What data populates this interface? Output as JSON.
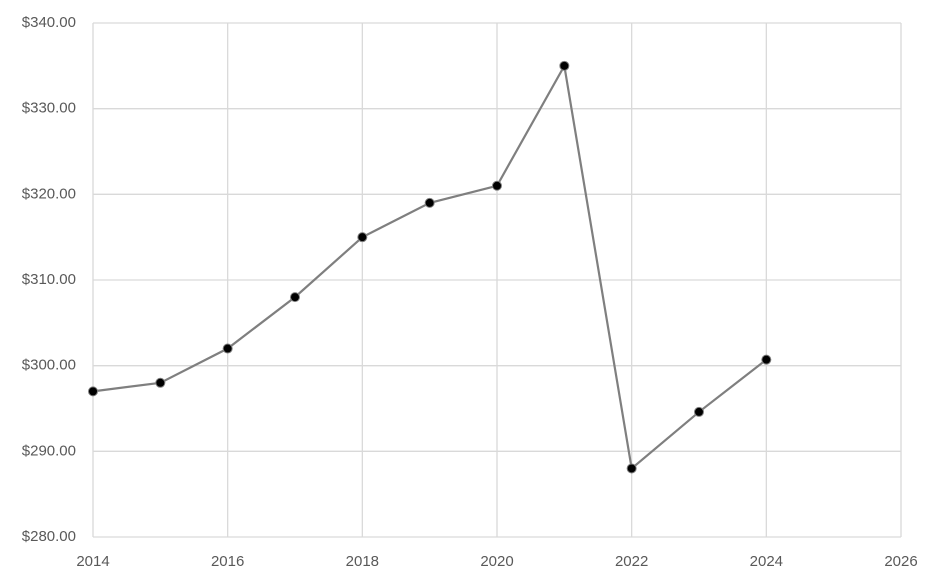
{
  "chart_data": {
    "type": "line",
    "x": [
      2014,
      2015,
      2016,
      2017,
      2018,
      2019,
      2020,
      2021,
      2022,
      2023,
      2024
    ],
    "values": [
      297,
      298,
      302,
      308,
      315,
      319,
      321,
      335,
      288,
      294.6,
      300.7
    ],
    "color": "#7f7f7f",
    "marker_color": "#000000",
    "xlim": [
      2014,
      2026
    ],
    "xticks": [
      2014,
      2016,
      2018,
      2020,
      2022,
      2024,
      2026
    ],
    "ylim": [
      280,
      340
    ],
    "yticks": [
      {
        "value": 280,
        "label": "$280.00"
      },
      {
        "value": 290,
        "label": "$290.00"
      },
      {
        "value": 300,
        "label": "$300.00"
      },
      {
        "value": 310,
        "label": "$310.00"
      },
      {
        "value": 320,
        "label": "$320.00"
      },
      {
        "value": 330,
        "label": "$330.00"
      },
      {
        "value": 340,
        "label": "$340.00"
      }
    ],
    "grid": true
  }
}
